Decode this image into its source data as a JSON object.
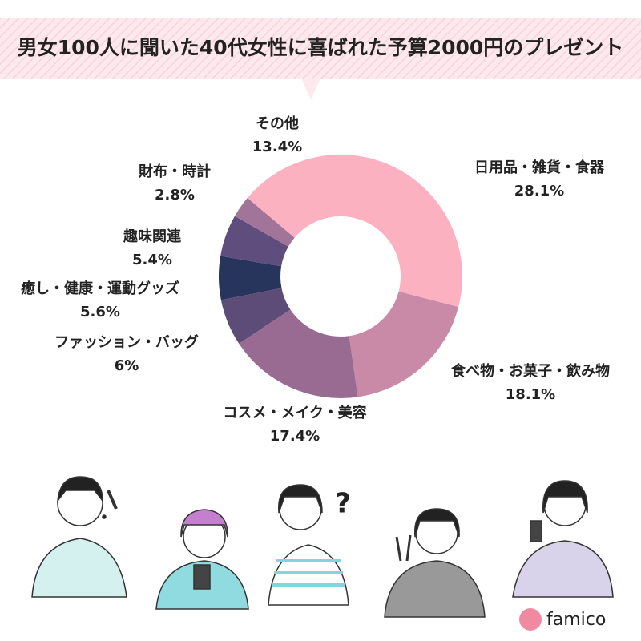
{
  "chart_data": {
    "type": "donut",
    "title": "男女100人に聞いた40代女性に喜ばれた予算2000円のプレゼント",
    "categories": [
      "日用品・雑貨・食器",
      "食べ物・お菓子・飲み物",
      "コスメ・メイク・美容",
      "ファッション・バッグ",
      "癒し・健康・運動グッズ",
      "趣味関連",
      "財布・時計",
      "その他"
    ],
    "values": [
      28.1,
      18.1,
      17.4,
      6,
      5.6,
      5.4,
      2.8,
      13.4
    ],
    "value_labels": [
      "28.1%",
      "18.1%",
      "17.4%",
      "6%",
      "5.6%",
      "5.4%",
      "2.8%",
      "13.4%"
    ],
    "colors": [
      "#fcb1c0",
      "#c98aa8",
      "#9a6b92",
      "#5e4c78",
      "#27345c",
      "#5f4d7d",
      "#a27499",
      "#fcb1c0"
    ]
  },
  "brand": "famico"
}
